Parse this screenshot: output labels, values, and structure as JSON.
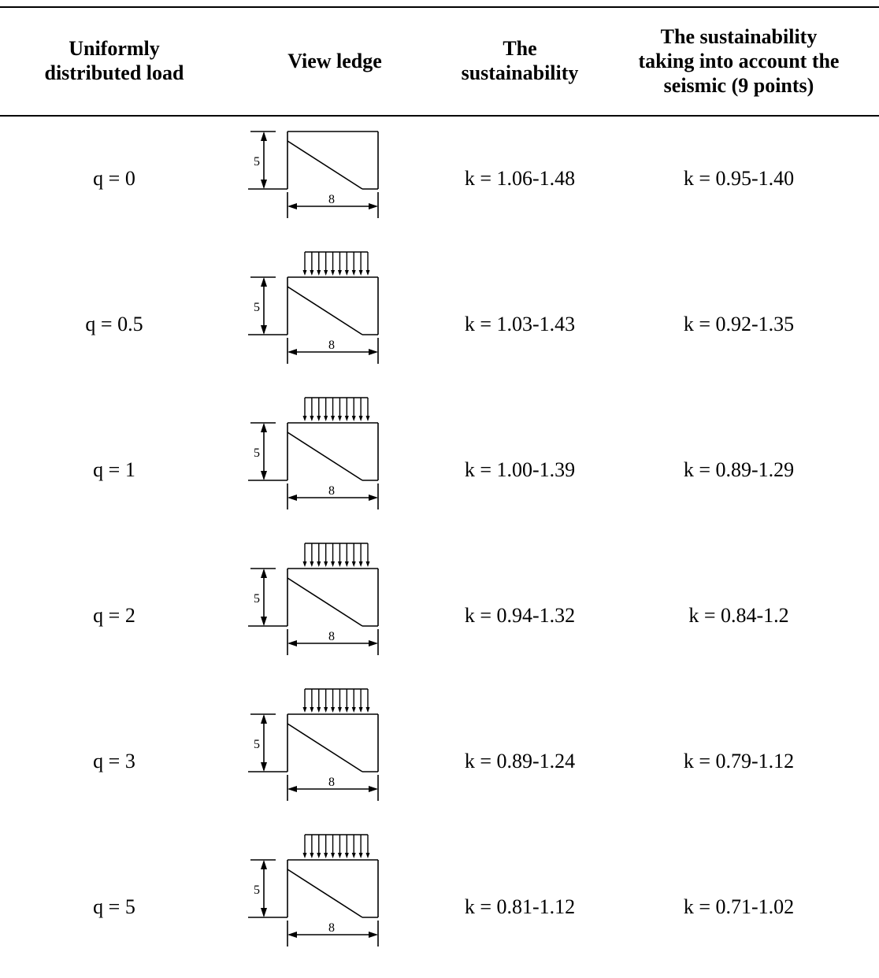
{
  "header": {
    "col_load": "Uniformly\ndistributed load",
    "col_view": "View ledge",
    "col_sust": "The\nsustainability",
    "col_seismic": "The sustainability\ntaking into account the\nseismic (9 points)"
  },
  "drawing": {
    "height_label": "5",
    "width_label": "8"
  },
  "rows": [
    {
      "load": "q = 0",
      "has_load": false,
      "sustainability": "k = 1.06-1.48",
      "seismic": "k = 0.95-1.40"
    },
    {
      "load": "q = 0.5",
      "has_load": true,
      "sustainability": "k = 1.03-1.43",
      "seismic": "k = 0.92-1.35"
    },
    {
      "load": "q = 1",
      "has_load": true,
      "sustainability": "k = 1.00-1.39",
      "seismic": "k = 0.89-1.29"
    },
    {
      "load": "q = 2",
      "has_load": true,
      "sustainability": "k = 0.94-1.32",
      "seismic": "k = 0.84-1.2"
    },
    {
      "load": "q = 3",
      "has_load": true,
      "sustainability": "k = 0.89-1.24",
      "seismic": "k = 0.79-1.12"
    },
    {
      "load": "q = 5",
      "has_load": true,
      "sustainability": "k = 0.81-1.12",
      "seismic": "k = 0.71-1.02"
    }
  ]
}
